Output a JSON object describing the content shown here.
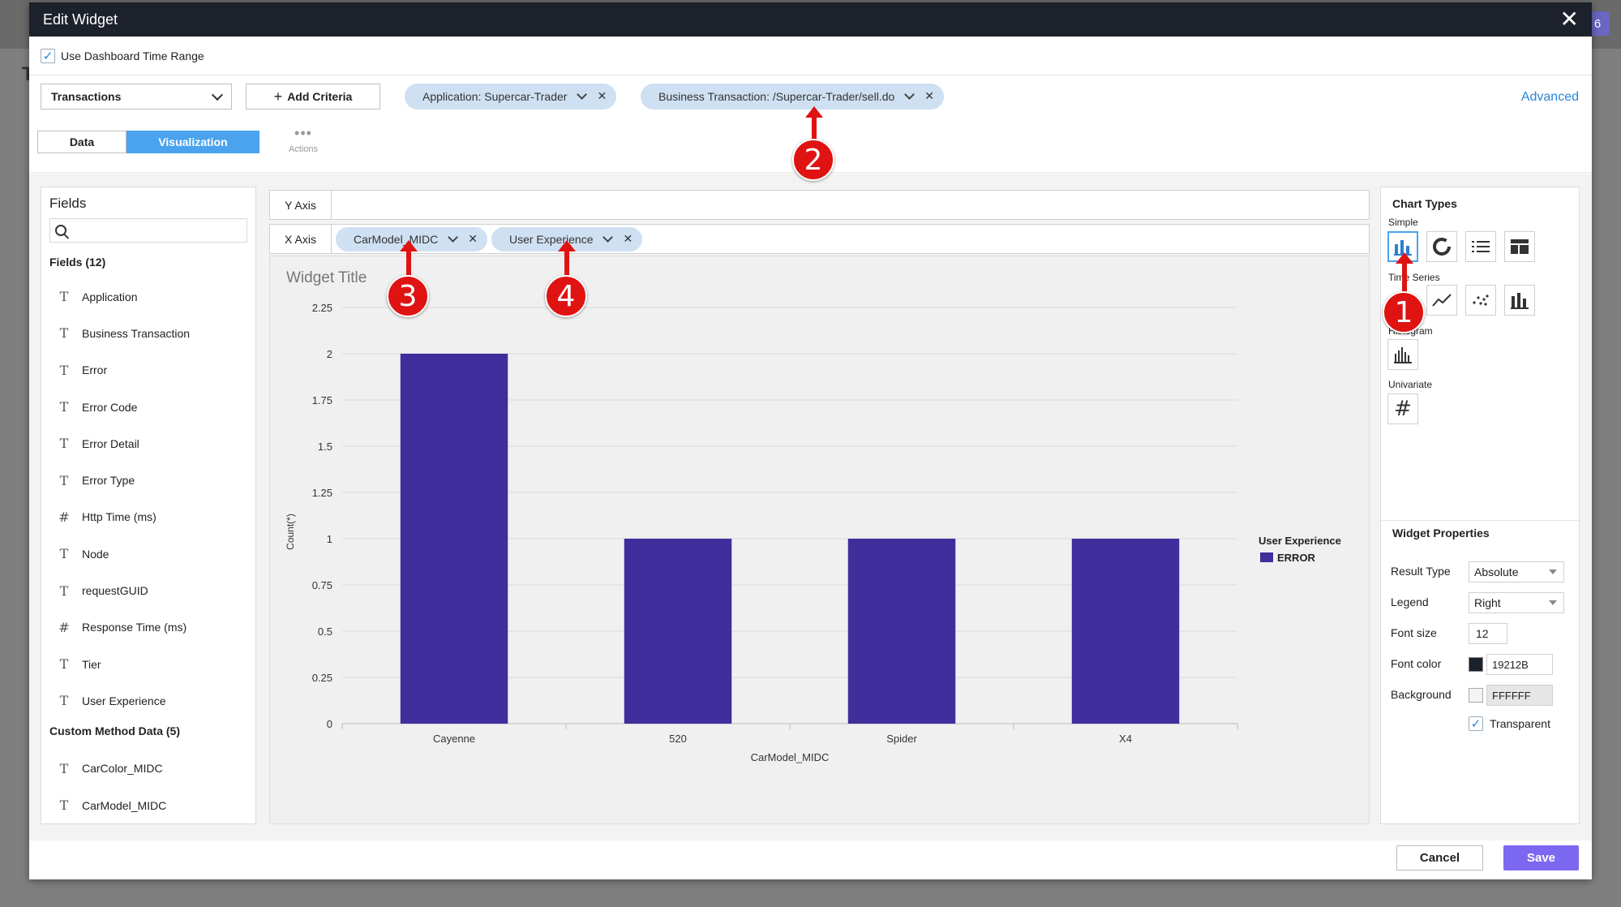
{
  "modal": {
    "title": "Edit Widget",
    "use_dashboard_time_range": "Use Dashboard Time Range"
  },
  "background": {
    "badge": "6",
    "letter": "T"
  },
  "criteria": {
    "source": "Transactions",
    "add_criteria": "Add Criteria",
    "pills": [
      {
        "label": "Application: Supercar-Trader"
      },
      {
        "label": "Business Transaction: /Supercar-Trader/sell.do"
      }
    ],
    "advanced": "Advanced"
  },
  "tabs": {
    "data": "Data",
    "visualization": "Visualization",
    "actions_label": "Actions"
  },
  "fields_panel": {
    "title": "Fields",
    "search_placeholder": "",
    "fields_header": "Fields (12)",
    "fields": [
      {
        "type": "T",
        "label": "Application"
      },
      {
        "type": "T",
        "label": "Business Transaction"
      },
      {
        "type": "T",
        "label": "Error"
      },
      {
        "type": "T",
        "label": "Error Code"
      },
      {
        "type": "T",
        "label": "Error Detail"
      },
      {
        "type": "T",
        "label": "Error Type"
      },
      {
        "type": "#",
        "label": "Http Time (ms)"
      },
      {
        "type": "T",
        "label": "Node"
      },
      {
        "type": "T",
        "label": "requestGUID"
      },
      {
        "type": "#",
        "label": "Response Time (ms)"
      },
      {
        "type": "T",
        "label": "Tier"
      },
      {
        "type": "T",
        "label": "User Experience"
      }
    ],
    "custom_header": "Custom Method Data (5)",
    "custom_fields": [
      {
        "type": "T",
        "label": "CarColor_MIDC"
      },
      {
        "type": "T",
        "label": "CarModel_MIDC"
      }
    ]
  },
  "axes": {
    "y_label": "Y Axis",
    "x_label": "X Axis",
    "x_pills": [
      "CarModel_MIDC",
      "User Experience"
    ]
  },
  "widget_title": "Widget Title",
  "chart_data": {
    "type": "bar",
    "categories": [
      "Cayenne",
      "520",
      "Spider",
      "X4"
    ],
    "series": [
      {
        "name": "ERROR",
        "values": [
          2,
          1,
          1,
          1
        ]
      }
    ],
    "ylim": [
      0,
      2.25
    ],
    "yticks": [
      "0",
      "0.25",
      "0.5",
      "0.75",
      "1",
      "1.25",
      "1.5",
      "1.75",
      "2",
      "2.25"
    ],
    "ytick_values": [
      0,
      0.25,
      0.5,
      0.75,
      1,
      1.25,
      1.5,
      1.75,
      2,
      2.25
    ],
    "xlabel": "CarModel_MIDC",
    "ylabel": "Count(*)",
    "legend_title": "User Experience",
    "legend_placement": "right",
    "grid": true,
    "bar_color": "#3f2e9c"
  },
  "chart_types": {
    "title": "Chart Types",
    "groups": {
      "simple": "Simple",
      "time_series": "Time Series",
      "histogram": "Histogram",
      "univariate": "Univariate"
    },
    "selected": "column-chart-icon"
  },
  "widget_properties": {
    "title": "Widget Properties",
    "result_type_label": "Result Type",
    "result_type": "Absolute",
    "legend_label": "Legend",
    "legend": "Right",
    "font_size_label": "Font size",
    "font_size": "12",
    "font_color_label": "Font color",
    "font_color": "19212B",
    "background_label": "Background",
    "background": "FFFFFF",
    "transparent_label": "Transparent"
  },
  "footer": {
    "cancel": "Cancel",
    "save": "Save"
  },
  "annotations": [
    "1",
    "2",
    "3",
    "4"
  ],
  "colors": {
    "accent": "#4aa3ec",
    "save": "#7c68f0",
    "marker": "#e01313",
    "pill": "#cfe0f2"
  }
}
